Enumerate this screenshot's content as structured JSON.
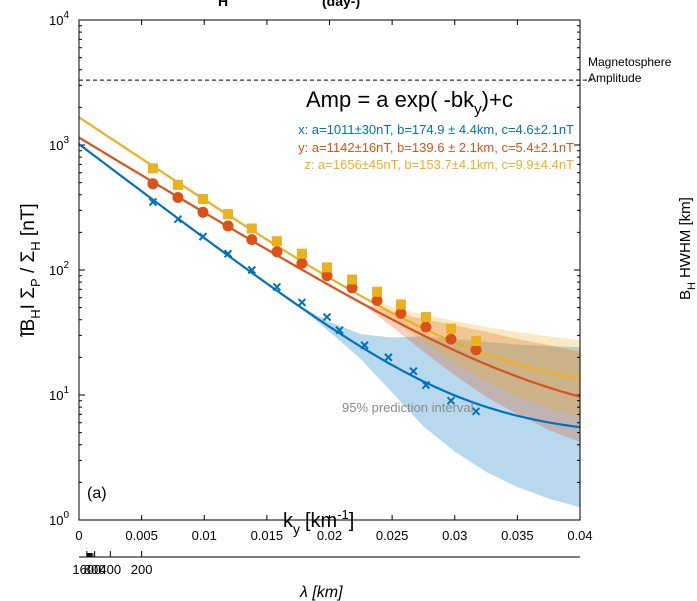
{
  "chart_data": {
    "type": "scatter",
    "panel_label": "(a)",
    "title_fragment": {
      "a": "H",
      "b": "(day-)"
    },
    "x": {
      "label_main": "k",
      "label_sub": "y",
      "label_unit": "[km",
      "label_exp": "-1",
      "label_close": "]",
      "range": [
        0,
        0.04
      ],
      "ticks": [
        "0",
        "0.005",
        "0.01",
        "0.015",
        "0.02",
        "0.025",
        "0.03",
        "0.035",
        "0.04"
      ]
    },
    "y": {
      "scale": "log",
      "range": [
        1,
        10000
      ],
      "ticks": [
        {
          "v": 1,
          "m": "10",
          "e": "0"
        },
        {
          "v": 10,
          "m": "10",
          "e": "1"
        },
        {
          "v": 100,
          "m": "10",
          "e": "2"
        },
        {
          "v": 1000,
          "m": "10",
          "e": "3"
        },
        {
          "v": 10000,
          "m": "10",
          "e": "4"
        }
      ],
      "label": {
        "p1": "̃",
        "p2": "IB",
        "p3": "H",
        "p4": "I Σ",
        "p5": "P",
        "p6": " / Σ",
        "p7": "H",
        "p8": " [nT]"
      }
    },
    "x2": {
      "label": "λ [km]",
      "ticks": [
        "1600",
        "800",
        "400",
        "200"
      ],
      "tick_values": [
        1600,
        800,
        400,
        200
      ],
      "minor_values": [
        1500,
        1400,
        1300,
        1200,
        1100,
        1000,
        900
      ]
    },
    "magnetosphere": {
      "value": 3300,
      "label1": "Magnetosphere",
      "label2": "Amplitude"
    },
    "formula": {
      "main": "Amp = a exp( -bk",
      "sub": "y",
      "tail": ")+c"
    },
    "interval_label": "95% prediction interval",
    "series": [
      {
        "name": "x",
        "color": "#0072BD",
        "marker": "x",
        "legend": "x: a=1011±30nT, b=174.9 ± 4.4km, c=4.6±2.1nT",
        "a": 1011,
        "b": 174.9,
        "c": 4.6,
        "x": [
          0.0059,
          0.0079,
          0.0099,
          0.0119,
          0.0138,
          0.0158,
          0.0178,
          0.0198,
          0.0208,
          0.0228,
          0.0247,
          0.0267,
          0.0277,
          0.0297,
          0.0317
        ],
        "y": [
          350,
          255,
          185,
          135,
          100,
          73,
          55,
          42,
          33,
          25,
          20,
          15.5,
          12,
          9,
          7.4
        ],
        "band_width": [
          0,
          0,
          0,
          0,
          0,
          0,
          0,
          0,
          0.04,
          0.1,
          0.22,
          0.36,
          0.45,
          0.52,
          0.57,
          0.61,
          0.64
        ]
      },
      {
        "name": "y",
        "color": "#D95319",
        "marker": "o",
        "legend": "y: a=1142±16nT, b=139.6 ± 2.1km, c=5.4±2.1nT",
        "a": 1142,
        "b": 139.6,
        "c": 5.4,
        "x": [
          0.0059,
          0.0079,
          0.0099,
          0.0119,
          0.0138,
          0.0158,
          0.0178,
          0.0198,
          0.0218,
          0.0238,
          0.0257,
          0.0277,
          0.0297,
          0.0317
        ],
        "y": [
          490,
          380,
          290,
          225,
          175,
          140,
          113,
          90,
          72,
          57,
          45,
          35,
          28,
          23
        ],
        "band_width": [
          0,
          0,
          0,
          0,
          0,
          0,
          0,
          0,
          0,
          0,
          0.06,
          0.13,
          0.2,
          0.26,
          0.3,
          0.34,
          0.36
        ]
      },
      {
        "name": "z",
        "color": "#EDB120",
        "marker": "s",
        "legend": "z: a=1656±45nT, b=153.7±4.1km, c=9.9±4.4nT",
        "a": 1656,
        "b": 153.7,
        "c": 9.9,
        "x": [
          0.0059,
          0.0079,
          0.0099,
          0.0119,
          0.0138,
          0.0158,
          0.0178,
          0.0198,
          0.0218,
          0.0238,
          0.0257,
          0.0277,
          0.0297,
          0.0317
        ],
        "y": [
          650,
          480,
          370,
          280,
          215,
          170,
          135,
          105,
          84,
          67,
          53,
          42,
          34,
          27
        ],
        "band_width": [
          0,
          0,
          0,
          0,
          0,
          0,
          0,
          0,
          0,
          0,
          0.05,
          0.11,
          0.17,
          0.22,
          0.26,
          0.29,
          0.31
        ]
      }
    ],
    "band_x": [
      0,
      0.0025,
      0.005,
      0.0075,
      0.01,
      0.0125,
      0.015,
      0.0175,
      0.02,
      0.0225,
      0.025,
      0.0275,
      0.03,
      0.0325,
      0.035,
      0.0375,
      0.04
    ],
    "right_panel_fragment": {
      "b": "B",
      "sub": "H",
      "text": "HWHM [km]"
    }
  }
}
